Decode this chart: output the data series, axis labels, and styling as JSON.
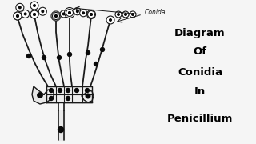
{
  "background_color": "#f5f5f5",
  "title_lines": [
    "Diagram",
    "Of",
    "Conidia",
    "In",
    "Penicillium"
  ],
  "title_fontsize": 9.5,
  "label_conida": "Conida",
  "line_color": "#1a1a1a",
  "dot_color": "#0a0a0a",
  "conida_fill": "#ffffff",
  "conida_edge": "#1a1a1a"
}
